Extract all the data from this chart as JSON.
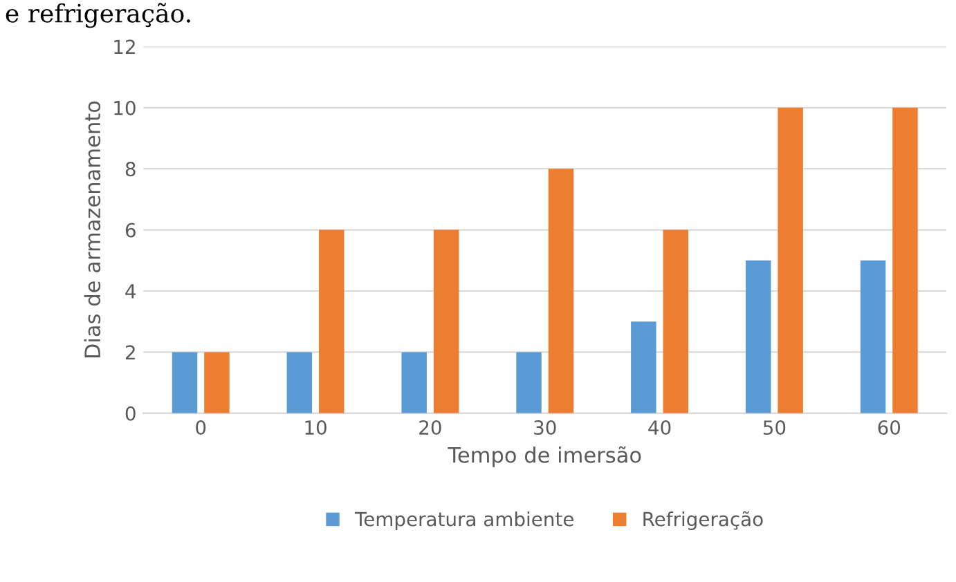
{
  "chart_data": {
    "type": "bar",
    "xlabel": "Tempo de imersão",
    "ylabel": "Dias de armazenamento",
    "categories": [
      "0",
      "10",
      "20",
      "30",
      "40",
      "50",
      "60"
    ],
    "series": [
      {
        "name": "Temperatura ambiente",
        "color": "#5b9bd5",
        "values": [
          2,
          2,
          2,
          2,
          3,
          5,
          5
        ]
      },
      {
        "name": "Refrigeração",
        "color": "#ed7d31",
        "values": [
          2,
          6,
          6,
          8,
          6,
          10,
          10
        ]
      }
    ],
    "ylim": [
      0,
      12
    ],
    "yticks": [
      0,
      2,
      4,
      6,
      8,
      10,
      12
    ],
    "grid": "y",
    "legend": "bottom",
    "annotations": [
      "e refrigeração."
    ]
  }
}
